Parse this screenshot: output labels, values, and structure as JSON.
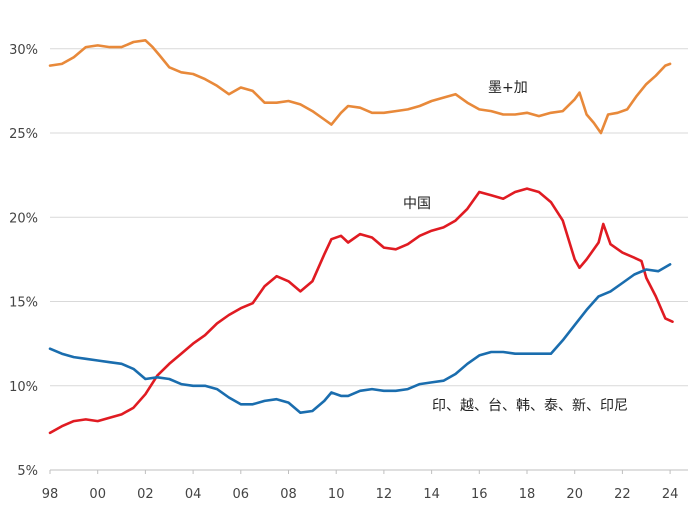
{
  "chart_data": {
    "type": "line",
    "ylim": [
      5,
      32
    ],
    "xlim": [
      1998,
      2024.6
    ],
    "grid": true,
    "yticks": [
      "5%",
      "10%",
      "15%",
      "20%",
      "25%",
      "30%"
    ],
    "xticks": [
      "98",
      "00",
      "02",
      "04",
      "06",
      "08",
      "10",
      "12",
      "14",
      "16",
      "18",
      "20",
      "22",
      "24"
    ],
    "series": [
      {
        "name": "墨+加",
        "color": "#E8893A",
        "x": [
          1998.0,
          1998.5,
          1999.0,
          1999.5,
          2000.0,
          2000.5,
          2001.0,
          2001.5,
          2002.0,
          2002.3,
          2002.6,
          2003.0,
          2003.5,
          2004.0,
          2004.5,
          2005.0,
          2005.5,
          2006.0,
          2006.5,
          2007.0,
          2007.5,
          2008.0,
          2008.5,
          2009.0,
          2009.5,
          2009.8,
          2010.2,
          2010.5,
          2011.0,
          2011.5,
          2012.0,
          2012.5,
          2013.0,
          2013.5,
          2014.0,
          2014.5,
          2015.0,
          2015.5,
          2016.0,
          2016.5,
          2017.0,
          2017.5,
          2018.0,
          2018.5,
          2019.0,
          2019.5,
          2020.0,
          2020.2,
          2020.5,
          2020.8,
          2021.1,
          2021.4,
          2021.8,
          2022.2,
          2022.6,
          2023.0,
          2023.4,
          2023.8,
          2024.0
        ],
        "values": [
          29.0,
          29.1,
          29.5,
          30.1,
          30.2,
          30.1,
          30.1,
          30.4,
          30.5,
          30.1,
          29.6,
          28.9,
          28.6,
          28.5,
          28.2,
          27.8,
          27.3,
          27.7,
          27.5,
          26.8,
          26.8,
          26.9,
          26.7,
          26.3,
          25.8,
          25.5,
          26.2,
          26.6,
          26.5,
          26.2,
          26.2,
          26.3,
          26.4,
          26.6,
          26.9,
          27.1,
          27.3,
          26.8,
          26.4,
          26.3,
          26.1,
          26.1,
          26.2,
          26.0,
          26.2,
          26.3,
          27.0,
          27.4,
          26.1,
          25.6,
          25.0,
          26.1,
          26.2,
          26.4,
          27.2,
          27.9,
          28.4,
          29.0,
          29.1
        ]
      },
      {
        "name": "中国",
        "color": "#E01B22",
        "x": [
          1998.0,
          1998.5,
          1999.0,
          1999.5,
          2000.0,
          2000.5,
          2001.0,
          2001.5,
          2002.0,
          2002.5,
          2003.0,
          2003.5,
          2004.0,
          2004.5,
          2005.0,
          2005.5,
          2006.0,
          2006.5,
          2007.0,
          2007.5,
          2008.0,
          2008.5,
          2009.0,
          2009.5,
          2009.8,
          2010.2,
          2010.5,
          2011.0,
          2011.5,
          2012.0,
          2012.5,
          2013.0,
          2013.5,
          2014.0,
          2014.5,
          2015.0,
          2015.5,
          2016.0,
          2016.5,
          2017.0,
          2017.5,
          2018.0,
          2018.5,
          2019.0,
          2019.5,
          2020.0,
          2020.2,
          2020.5,
          2021.0,
          2021.2,
          2021.5,
          2022.0,
          2022.5,
          2022.8,
          2023.0,
          2023.4,
          2023.8,
          2024.1
        ],
        "values": [
          7.2,
          7.6,
          7.9,
          8.0,
          7.9,
          8.1,
          8.3,
          8.7,
          9.5,
          10.6,
          11.3,
          11.9,
          12.5,
          13.0,
          13.7,
          14.2,
          14.6,
          14.9,
          15.9,
          16.5,
          16.2,
          15.6,
          16.2,
          17.8,
          18.7,
          18.9,
          18.5,
          19.0,
          18.8,
          18.2,
          18.1,
          18.4,
          18.9,
          19.2,
          19.4,
          19.8,
          20.5,
          21.5,
          21.3,
          21.1,
          21.5,
          21.7,
          21.5,
          20.9,
          19.8,
          17.5,
          17.0,
          17.5,
          18.5,
          19.6,
          18.4,
          17.9,
          17.6,
          17.4,
          16.4,
          15.3,
          14.0,
          13.8
        ]
      },
      {
        "name": "印、越、台、韩、泰、新、印尼",
        "color": "#1A6DAE",
        "x": [
          1998.0,
          1998.5,
          1999.0,
          1999.5,
          2000.0,
          2000.5,
          2001.0,
          2001.5,
          2002.0,
          2002.5,
          2003.0,
          2003.5,
          2004.0,
          2004.5,
          2005.0,
          2005.5,
          2006.0,
          2006.5,
          2007.0,
          2007.5,
          2008.0,
          2008.5,
          2009.0,
          2009.5,
          2009.8,
          2010.2,
          2010.5,
          2011.0,
          2011.5,
          2012.0,
          2012.5,
          2013.0,
          2013.5,
          2014.0,
          2014.5,
          2015.0,
          2015.5,
          2016.0,
          2016.5,
          2017.0,
          2017.5,
          2018.0,
          2018.5,
          2019.0,
          2019.5,
          2020.0,
          2020.5,
          2021.0,
          2021.5,
          2022.0,
          2022.5,
          2023.0,
          2023.5,
          2024.0
        ],
        "values": [
          12.2,
          11.9,
          11.7,
          11.6,
          11.5,
          11.4,
          11.3,
          11.0,
          10.4,
          10.5,
          10.4,
          10.1,
          10.0,
          10.0,
          9.8,
          9.3,
          8.9,
          8.9,
          9.1,
          9.2,
          9.0,
          8.4,
          8.5,
          9.1,
          9.6,
          9.4,
          9.4,
          9.7,
          9.8,
          9.7,
          9.7,
          9.8,
          10.1,
          10.2,
          10.3,
          10.7,
          11.3,
          11.8,
          12.0,
          12.0,
          11.9,
          11.9,
          11.9,
          11.9,
          12.7,
          13.6,
          14.5,
          15.3,
          15.6,
          16.1,
          16.6,
          16.9,
          16.8,
          17.2
        ]
      }
    ]
  }
}
